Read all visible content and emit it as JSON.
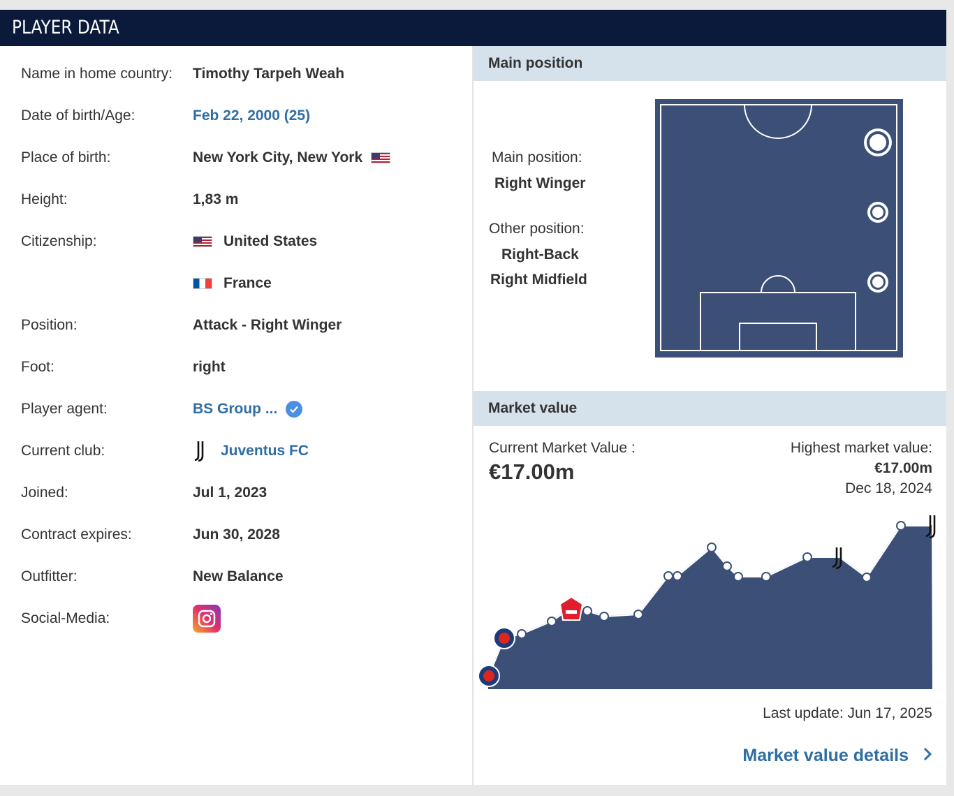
{
  "header": {
    "title": "PLAYER DATA"
  },
  "details": {
    "rows": [
      {
        "label": "Name in home country:",
        "value": "Timothy Tarpeh Weah"
      },
      {
        "label": "Date of birth/Age:",
        "value": "Feb 22, 2000 (25)"
      },
      {
        "label": "Place of birth:",
        "value": "New York City, New York",
        "flag": "us-flag-icon"
      },
      {
        "label": "Height:",
        "value": "1,83 m"
      },
      {
        "label": "Citizenship:",
        "value": "United States",
        "flag": "us-flag-icon"
      },
      {
        "label": "",
        "value": "France",
        "flag": "fr-flag-icon"
      },
      {
        "label": "Position:",
        "value": "Attack - Right Winger"
      },
      {
        "label": "Foot:",
        "value": "right"
      },
      {
        "label": "Player agent:",
        "value": "BS Group ...",
        "icon": "verified-icon"
      },
      {
        "label": "Current club:",
        "value": "Juventus FC",
        "icon": "juventus-logo-icon"
      },
      {
        "label": "Joined:",
        "value": "Jul 1, 2023"
      },
      {
        "label": "Contract expires:",
        "value": "Jun 30, 2028"
      },
      {
        "label": "Outfitter:",
        "value": "New Balance"
      },
      {
        "label": "Social-Media:",
        "value": "",
        "icon": "instagram-icon"
      }
    ]
  },
  "position": {
    "heading": "Main position",
    "main_label": "Main position:",
    "main_value": "Right Winger",
    "other_label": "Other position:",
    "other_values": [
      "Right-Back",
      "Right Midfield"
    ]
  },
  "market": {
    "heading": "Market value",
    "current_label": "Current Market Value :",
    "current_value": "€17.00m",
    "highest_label": "Highest market value:",
    "highest_value": "€17.00m",
    "highest_date": "Dec 18, 2024",
    "last_update": "Last update: Jun 17, 2025",
    "details_link": "Market value details",
    "colors": {
      "area": "#3c5077",
      "link": "#2f6ea3"
    }
  }
}
